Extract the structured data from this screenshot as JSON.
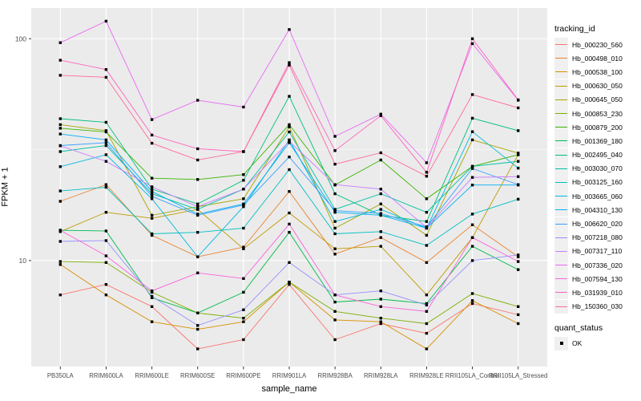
{
  "chart_data": {
    "type": "line",
    "title": "",
    "xlabel": "sample_name",
    "ylabel": "FPKM + 1",
    "y_scale": "log10",
    "grid": true,
    "legend_position": "right",
    "y_ticks": [
      10,
      100
    ],
    "y_minor_gridlines": [
      31.6
    ],
    "ylim": [
      3.33,
      137.5
    ],
    "point_shape": "filled-square",
    "point_color": "#000000",
    "categories": [
      "PB350LA",
      "RRIM600LA",
      "RRIM600LE",
      "RRIM600SE",
      "RRIM600PE",
      "RRIM901LA",
      "RRIM928BA",
      "RRIM928LA",
      "RRIM928LE",
      "RRII105LA_Control",
      "RRII105LA_Stressed"
    ],
    "series": [
      {
        "name": "Hb_000230_560",
        "color": "#F8766D",
        "values": [
          7.0,
          7.8,
          6.2,
          4.0,
          4.4,
          7.8,
          4.4,
          5.2,
          4.7,
          6.4,
          5.7
        ]
      },
      {
        "name": "Hb_000498_010",
        "color": "#EA8331",
        "values": [
          18.5,
          22.0,
          13.0,
          10.4,
          11.5,
          20.5,
          10.7,
          12.7,
          9.8,
          14.5,
          10.4
        ]
      },
      {
        "name": "Hb_000538_100",
        "color": "#D89000",
        "values": [
          9.6,
          7.0,
          5.3,
          4.9,
          5.3,
          8.0,
          5.4,
          5.3,
          4.0,
          6.6,
          5.2
        ]
      },
      {
        "name": "Hb_000630_050",
        "color": "#C09B00",
        "values": [
          13.5,
          16.5,
          15.5,
          17.0,
          11.3,
          16.4,
          11.3,
          11.6,
          7.0,
          12.7,
          30.0
        ]
      },
      {
        "name": "Hb_000645_050",
        "color": "#A3A500",
        "values": [
          41.0,
          38.5,
          16.0,
          17.5,
          19.0,
          40.0,
          14.0,
          18.0,
          13.0,
          35.0,
          30.5
        ]
      },
      {
        "name": "Hb_000853_230",
        "color": "#7CAE00",
        "values": [
          9.9,
          9.8,
          7.2,
          5.8,
          5.5,
          8.0,
          5.9,
          5.5,
          5.2,
          7.1,
          6.2
        ]
      },
      {
        "name": "Hb_000879_200",
        "color": "#39B600",
        "values": [
          39.5,
          38.0,
          23.5,
          23.2,
          24.4,
          41.0,
          21.9,
          28.4,
          19.0,
          26.6,
          30.0
        ]
      },
      {
        "name": "Hb_001369_180",
        "color": "#00BB4E",
        "values": [
          13.7,
          13.6,
          6.8,
          5.8,
          7.2,
          13.4,
          6.5,
          6.7,
          6.4,
          11.6,
          9.1
        ]
      },
      {
        "name": "Hb_002495_040",
        "color": "#00BF7D",
        "values": [
          43.6,
          42.0,
          21.0,
          18.0,
          23.0,
          55.0,
          20.0,
          16.0,
          15.0,
          43.8,
          38.5
        ]
      },
      {
        "name": "Hb_003030_070",
        "color": "#00C1A3",
        "values": [
          31.0,
          33.0,
          20.0,
          17.0,
          21.0,
          38.0,
          17.0,
          20.0,
          16.5,
          26.6,
          28.0
        ]
      },
      {
        "name": "Hb_003125_160",
        "color": "#00BFC4",
        "values": [
          20.6,
          21.4,
          13.2,
          13.4,
          14.0,
          25.7,
          13.2,
          13.5,
          11.7,
          16.2,
          18.9
        ]
      },
      {
        "name": "Hb_003665_060",
        "color": "#00BAE0",
        "values": [
          26.5,
          30.0,
          19.0,
          10.4,
          17.5,
          35.0,
          15.0,
          17.0,
          14.0,
          38.1,
          26.1
        ]
      },
      {
        "name": "Hb_004310_130",
        "color": "#00B0F6",
        "values": [
          37.2,
          35.0,
          20.5,
          16.2,
          18.0,
          34.0,
          16.5,
          16.0,
          14.0,
          21.9,
          21.9
        ]
      },
      {
        "name": "Hb_006620_020",
        "color": "#35A2FF",
        "values": [
          33.0,
          34.0,
          19.5,
          16.0,
          17.8,
          29.3,
          16.8,
          16.3,
          14.2,
          26.0,
          22.0
        ]
      },
      {
        "name": "Hb_007218_080",
        "color": "#9590FF",
        "values": [
          12.2,
          12.3,
          6.9,
          5.1,
          6.0,
          9.8,
          7.0,
          7.3,
          6.3,
          10.0,
          10.6
        ]
      },
      {
        "name": "Hb_007317_110",
        "color": "#C77CFF",
        "values": [
          32.9,
          28.0,
          21.5,
          17.5,
          21.0,
          34.5,
          22.0,
          21.0,
          14.1,
          23.7,
          23.9
        ]
      },
      {
        "name": "Hb_007336_020",
        "color": "#E76BF3",
        "values": [
          96.0,
          120.0,
          43.2,
          52.8,
          49.2,
          110.0,
          36.3,
          45.7,
          27.6,
          95.0,
          52.8
        ]
      },
      {
        "name": "Hb_007594_130",
        "color": "#FA62DB",
        "values": [
          13.7,
          10.5,
          7.3,
          8.8,
          8.3,
          14.6,
          7.0,
          6.2,
          5.9,
          12.7,
          9.9
        ]
      },
      {
        "name": "Hb_031939_010",
        "color": "#FF62BC",
        "values": [
          80.0,
          72.6,
          36.8,
          31.9,
          31.0,
          78.0,
          31.3,
          45.0,
          25.0,
          100.0,
          53.0
        ]
      },
      {
        "name": "Hb_150360_030",
        "color": "#FF6A98",
        "values": [
          68.4,
          67.0,
          33.8,
          28.4,
          31.0,
          76.0,
          27.2,
          30.6,
          24.0,
          56.0,
          48.8
        ]
      }
    ]
  },
  "legend": {
    "tracking_title": "tracking_id",
    "quant_title": "quant_status",
    "quant_items": [
      {
        "label": "OK"
      }
    ]
  },
  "colors": {
    "panel_bg": "#ebebeb",
    "grid": "#ffffff",
    "axis_text": "#4d4d4d",
    "tick_mark": "#333333",
    "legend_key_bg": "#f0f0f0",
    "page_bg": "#ffffff",
    "point": "#000000"
  }
}
